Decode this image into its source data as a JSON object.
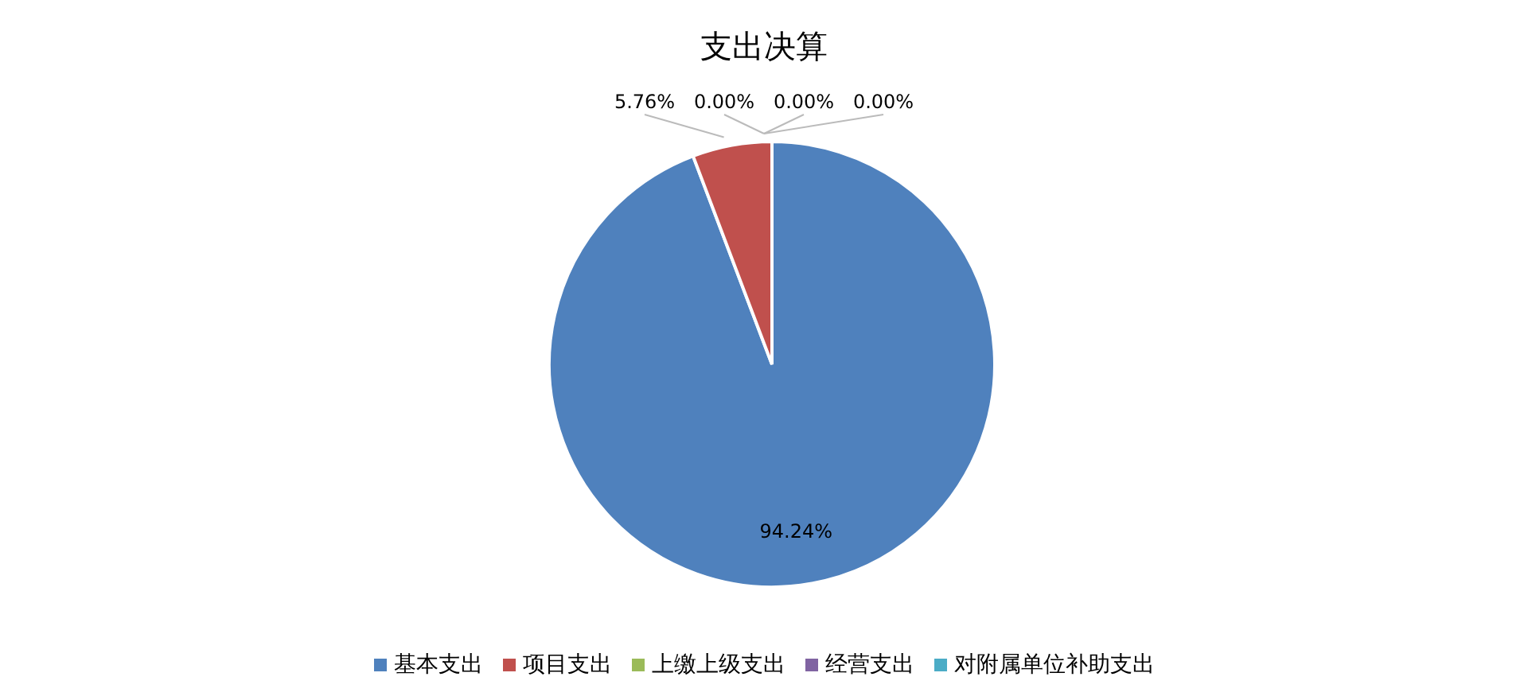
{
  "chart_data": {
    "type": "pie",
    "title": "支出决算",
    "categories": [
      "基本支出",
      "项目支出",
      "上缴上级支出",
      "经营支出",
      "对附属单位补助支出"
    ],
    "values": [
      94.24,
      5.76,
      0,
      0,
      0
    ],
    "value_labels": [
      "94.24%",
      "5.76%",
      "0.00%",
      "0.00%",
      "0.00%"
    ],
    "colors": [
      "#4f81bd",
      "#c0504d",
      "#9bbb59",
      "#8064a2",
      "#4bacc6"
    ],
    "legend": "bottom"
  }
}
